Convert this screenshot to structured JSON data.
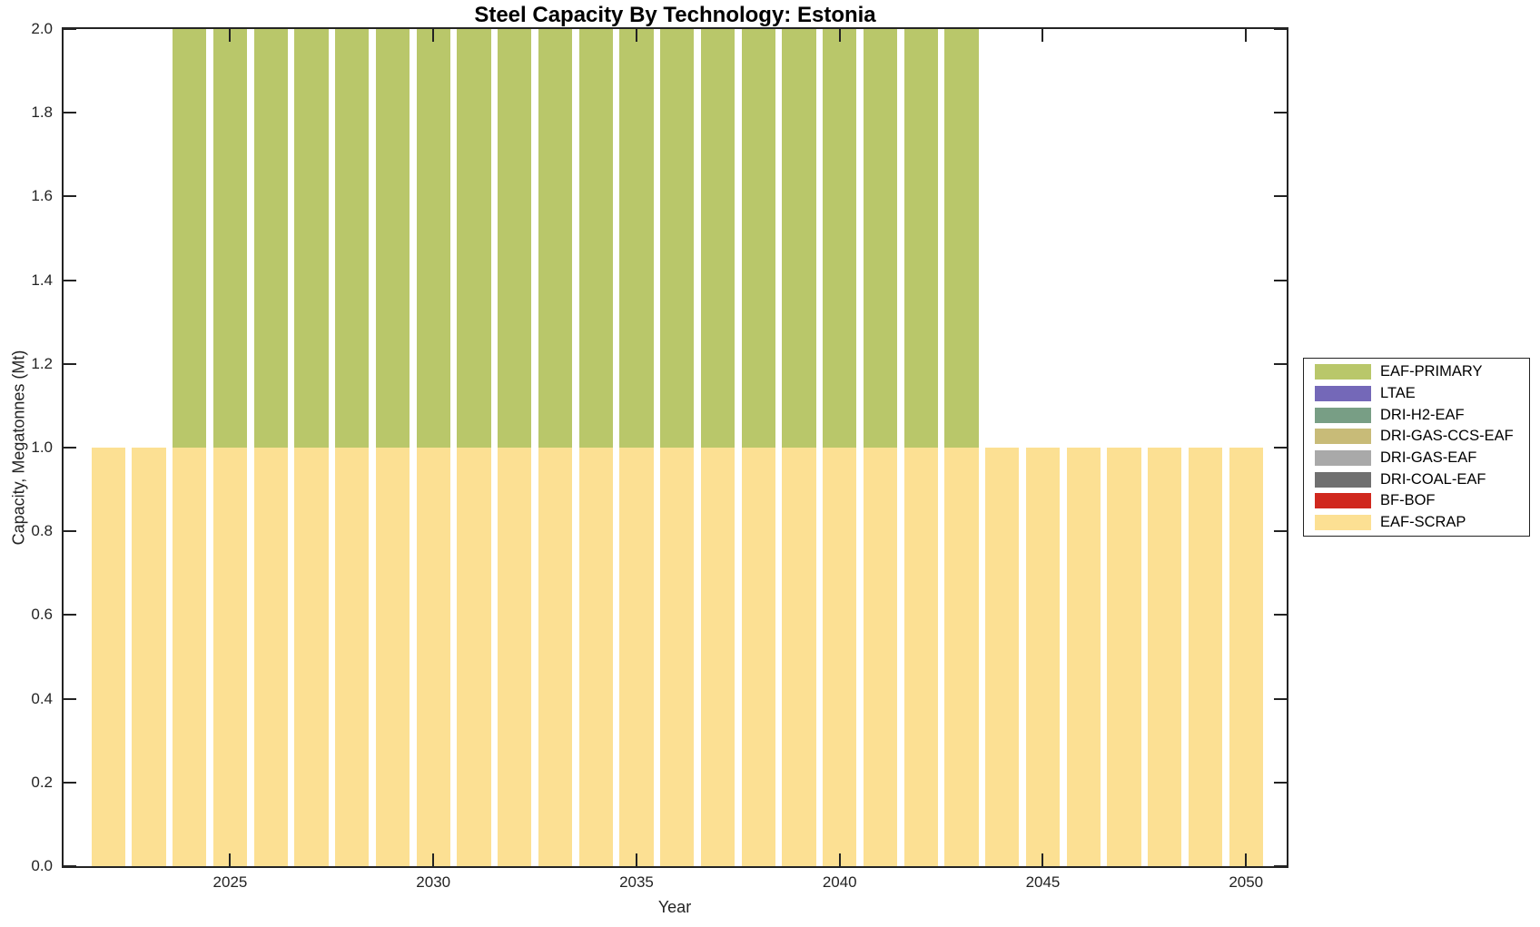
{
  "chart_data": {
    "type": "bar",
    "stacked": true,
    "title": "Steel Capacity By Technology: Estonia",
    "xlabel": "Year",
    "ylabel": "Capacity, Megatonnes (Mt)",
    "xlim": [
      2020.9,
      2051.0
    ],
    "ylim": [
      0,
      2
    ],
    "bar_width": 0.83,
    "grid": false,
    "x": [
      2022,
      2023,
      2024,
      2025,
      2026,
      2027,
      2028,
      2029,
      2030,
      2031,
      2032,
      2033,
      2034,
      2035,
      2036,
      2037,
      2038,
      2039,
      2040,
      2041,
      2042,
      2043,
      2044,
      2045,
      2046,
      2047,
      2048,
      2049,
      2050
    ],
    "series": [
      {
        "name": "EAF-SCRAP",
        "color": "#fce093",
        "values": [
          1,
          1,
          1,
          1,
          1,
          1,
          1,
          1,
          1,
          1,
          1,
          1,
          1,
          1,
          1,
          1,
          1,
          1,
          1,
          1,
          1,
          1,
          1,
          1,
          1,
          1,
          1,
          1,
          1
        ]
      },
      {
        "name": "EAF-PRIMARY",
        "color": "#b9c76a",
        "values": [
          0,
          0,
          1,
          1,
          1,
          1,
          1,
          1,
          1,
          1,
          1,
          1,
          1,
          1,
          1,
          1,
          1,
          1,
          1,
          1,
          1,
          1,
          0,
          0,
          0,
          0,
          0,
          0,
          0
        ]
      }
    ],
    "xticks": [
      2025,
      2030,
      2035,
      2040,
      2045,
      2050
    ],
    "yticks": [
      "0.0",
      "0.2",
      "0.4",
      "0.6",
      "0.8",
      "1.0",
      "1.2",
      "1.4",
      "1.6",
      "1.8",
      "2.0"
    ],
    "legend": {
      "position": "right-outside",
      "entries": [
        {
          "label": "EAF-PRIMARY",
          "color": "#b9c76a"
        },
        {
          "label": "LTAE",
          "color": "#7468b8"
        },
        {
          "label": "DRI-H2-EAF",
          "color": "#789e85"
        },
        {
          "label": "DRI-GAS-CCS-EAF",
          "color": "#c8bb78"
        },
        {
          "label": "DRI-GAS-EAF",
          "color": "#a9a9a9"
        },
        {
          "label": "DRI-COAL-EAF",
          "color": "#707070"
        },
        {
          "label": "BF-BOF",
          "color": "#d0281e"
        },
        {
          "label": "EAF-SCRAP",
          "color": "#fce093"
        }
      ]
    }
  }
}
